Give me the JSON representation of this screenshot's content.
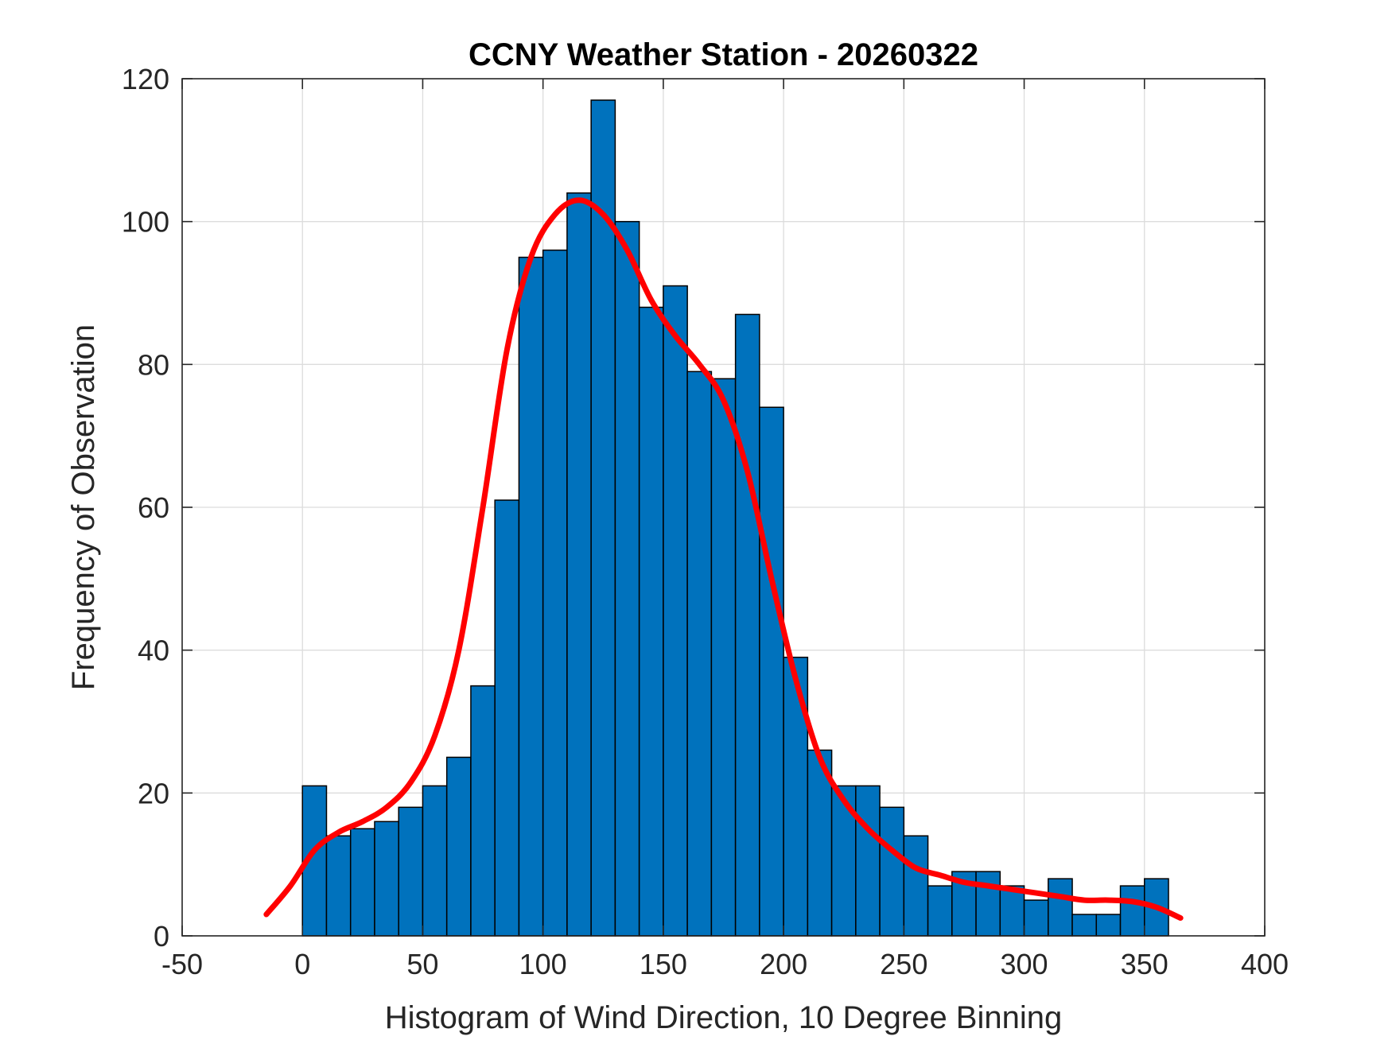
{
  "chart_data": {
    "type": "bar",
    "title": "CCNY Weather Station - 20260322",
    "xlabel": "Histogram of Wind Direction, 10 Degree Binning",
    "ylabel": "Frequency of Observation",
    "xlim": [
      -50,
      400
    ],
    "ylim": [
      0,
      120
    ],
    "xticks": [
      -50,
      0,
      50,
      100,
      150,
      200,
      250,
      300,
      350,
      400
    ],
    "yticks": [
      0,
      20,
      40,
      60,
      80,
      100,
      120
    ],
    "grid": true,
    "bin_width": 10,
    "bin_edges": [
      0,
      10,
      20,
      30,
      40,
      50,
      60,
      70,
      80,
      90,
      100,
      110,
      120,
      130,
      140,
      150,
      160,
      170,
      180,
      190,
      200,
      210,
      220,
      230,
      240,
      250,
      260,
      270,
      280,
      290,
      300,
      310,
      320,
      330,
      340,
      350,
      360
    ],
    "series": [
      {
        "kind": "histogram",
        "color": "#0072BD",
        "edge_color": "#000000",
        "values": [
          21,
          14,
          15,
          16,
          18,
          21,
          25,
          35,
          61,
          95,
          96,
          104,
          117,
          100,
          88,
          91,
          79,
          78,
          87,
          74,
          39,
          26,
          21,
          21,
          18,
          14,
          7,
          9,
          9,
          7,
          5,
          8,
          3,
          3,
          7,
          8
        ]
      },
      {
        "kind": "density-fit",
        "color": "#FF0000",
        "x": [
          -15,
          -5,
          5,
          15,
          25,
          35,
          45,
          55,
          65,
          75,
          85,
          95,
          105,
          115,
          125,
          135,
          145,
          155,
          165,
          175,
          185,
          195,
          205,
          215,
          225,
          235,
          245,
          255,
          265,
          275,
          285,
          295,
          305,
          315,
          325,
          335,
          345,
          355,
          365
        ],
        "y": [
          3,
          7,
          12,
          14.5,
          16,
          18,
          21.5,
          28,
          40,
          60,
          82,
          95,
          101,
          103,
          101,
          96,
          89,
          84,
          80,
          75,
          65,
          50,
          36,
          25,
          19,
          15,
          12,
          9.5,
          8.5,
          7.5,
          7,
          6.5,
          6,
          5.5,
          5,
          5,
          4.8,
          4,
          2.5
        ]
      }
    ]
  }
}
